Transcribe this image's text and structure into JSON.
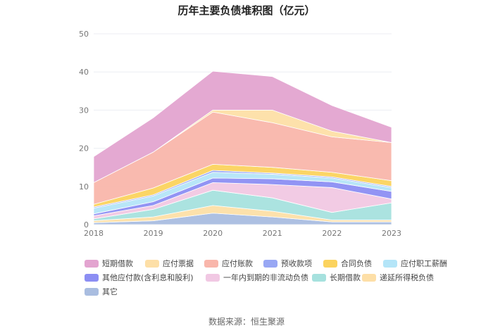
{
  "title": "历年主要负债堆积图（亿元）",
  "source": "数据来源：恒生聚源",
  "colors": {
    "短期借款": "#e3a4d0",
    "应付票据": "#fddfa7",
    "应付账款": "#f9b6ab",
    "预收款项": "#98a7f4",
    "合同负债": "#fbd35e",
    "应付职工薪酬": "#b4e5f8",
    "其他应付款(含利息和股利)": "#8c8ef3",
    "一年内到期的非流动负债": "#f1c8e3",
    "长期借款": "#a6e1de",
    "递延所得税负债": "#fddfa7",
    "其它": "#a9bde0"
  },
  "chart_data": {
    "type": "area",
    "title": "历年主要负债堆积图（亿元）",
    "x": [
      "2018",
      "2019",
      "2020",
      "2021",
      "2022",
      "2023"
    ],
    "ylim": [
      0,
      50
    ],
    "yticks": [
      0,
      10,
      20,
      30,
      40,
      50
    ],
    "grid": true,
    "legend_position": "bottom",
    "series": [
      {
        "name": "其它",
        "values": [
          0.5,
          1.0,
          3.0,
          2.0,
          0.7,
          0.7
        ]
      },
      {
        "name": "递延所得税负债",
        "values": [
          0.5,
          1.0,
          2.0,
          1.5,
          0.5,
          0.5
        ]
      },
      {
        "name": "长期借款",
        "values": [
          0.5,
          2.0,
          4.0,
          3.5,
          2.0,
          4.5
        ]
      },
      {
        "name": "一年内到期的非流动负债",
        "values": [
          0.8,
          1.0,
          2.0,
          3.5,
          6.5,
          1.0
        ]
      },
      {
        "name": "其他应付款(含利息和股利)",
        "values": [
          0.5,
          1.0,
          1.2,
          1.5,
          1.5,
          2.0
        ]
      },
      {
        "name": "应付职工薪酬",
        "values": [
          1.5,
          1.5,
          1.5,
          1.2,
          1.0,
          1.0
        ]
      },
      {
        "name": "预收款项",
        "values": [
          0.3,
          0.3,
          0.5,
          0.3,
          0.3,
          0.3
        ]
      },
      {
        "name": "合同负债",
        "values": [
          0.7,
          1.8,
          1.6,
          1.5,
          1.2,
          1.5
        ]
      },
      {
        "name": "应付账款",
        "values": [
          5.7,
          9.4,
          13.7,
          11.7,
          9.3,
          10.0
        ]
      },
      {
        "name": "应付票据",
        "values": [
          0.0,
          0.0,
          0.5,
          3.3,
          1.5,
          0.0
        ]
      },
      {
        "name": "短期借款",
        "values": [
          6.8,
          9.0,
          10.2,
          8.8,
          6.7,
          4.0
        ]
      }
    ],
    "legend_order": [
      "短期借款",
      "应付票据",
      "应付账款",
      "预收款项",
      "合同负债",
      "应付职工薪酬",
      "其他应付款(含利息和股利)",
      "一年内到期的非流动负债",
      "长期借款",
      "递延所得税负债",
      "其它"
    ]
  }
}
